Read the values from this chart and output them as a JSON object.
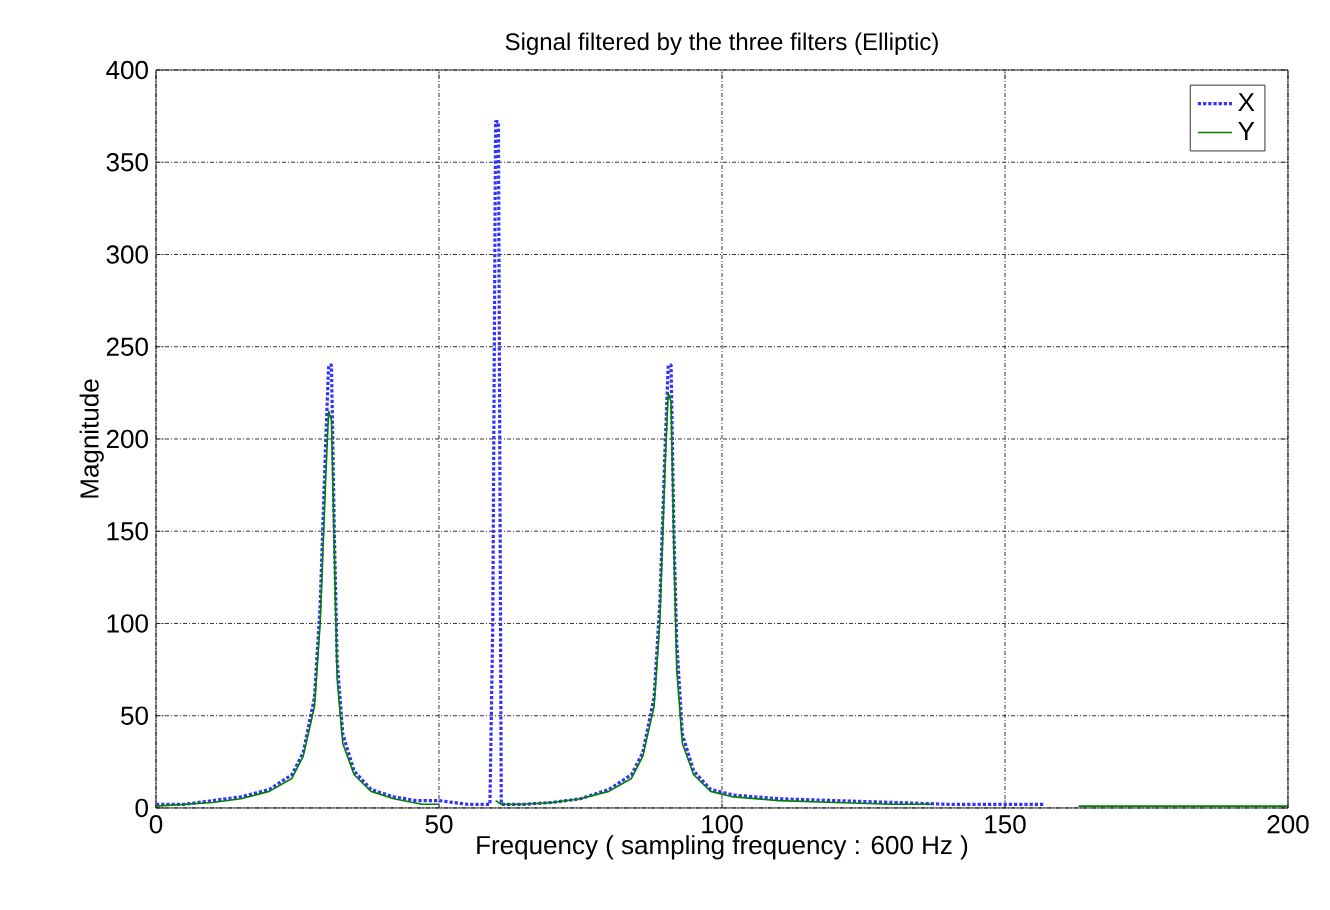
{
  "chart_data": {
    "type": "line",
    "title": "Signal filtered by the three filters (Elliptic)",
    "xlabel": "Frequency ( sampling frequency : 600 Hz )",
    "ylabel": "Magnitude",
    "xlim": [
      0,
      200
    ],
    "ylim": [
      0,
      400
    ],
    "xticks": [
      0,
      50,
      100,
      150,
      200
    ],
    "yticks": [
      0,
      50,
      100,
      150,
      200,
      250,
      300,
      350,
      400
    ],
    "grid": true,
    "legend": "top right",
    "series": [
      {
        "name": "X",
        "color": "#3333ff",
        "line_style": "dotted",
        "x": [
          0,
          5,
          10,
          15,
          20,
          24,
          26,
          28,
          29,
          30,
          30.5,
          31,
          31.5,
          32,
          33,
          35,
          38,
          42,
          46,
          50,
          55,
          59,
          59.5,
          60,
          60.5,
          61,
          65,
          70,
          75,
          80,
          84,
          86,
          88,
          89,
          90,
          90.5,
          91,
          91.5,
          92,
          93,
          95,
          98,
          102,
          110,
          120,
          130,
          140,
          150,
          157
        ],
        "values": [
          2,
          2,
          4,
          6,
          10,
          18,
          30,
          60,
          110,
          200,
          240,
          240,
          150,
          80,
          40,
          20,
          10,
          6,
          4,
          4,
          2,
          2,
          100,
          372,
          372,
          2,
          2,
          3,
          5,
          10,
          18,
          30,
          60,
          110,
          200,
          240,
          240,
          150,
          90,
          40,
          20,
          10,
          7,
          5,
          4,
          3,
          2,
          2,
          2
        ]
      },
      {
        "name": "Y",
        "color": "#008000",
        "line_style": "solid",
        "x": [
          0,
          10,
          15,
          20,
          24,
          26,
          28,
          29,
          30,
          30.5,
          31,
          31.5,
          32,
          33,
          35,
          38,
          42,
          47,
          50,
          55,
          60,
          61,
          65,
          70,
          75,
          80,
          84,
          86,
          88,
          89,
          90,
          90.5,
          91,
          91.5,
          92,
          93,
          95,
          98,
          102,
          110,
          120,
          130,
          137,
          150,
          163,
          200
        ],
        "values": [
          1,
          3,
          5,
          9,
          16,
          28,
          55,
          100,
          180,
          215,
          210,
          140,
          70,
          35,
          18,
          9,
          5,
          2,
          2,
          null,
          4,
          2,
          2,
          3,
          5,
          9,
          16,
          28,
          55,
          100,
          190,
          225,
          220,
          140,
          75,
          35,
          18,
          9,
          6,
          4,
          3,
          2,
          2,
          null,
          1,
          1
        ]
      }
    ]
  }
}
